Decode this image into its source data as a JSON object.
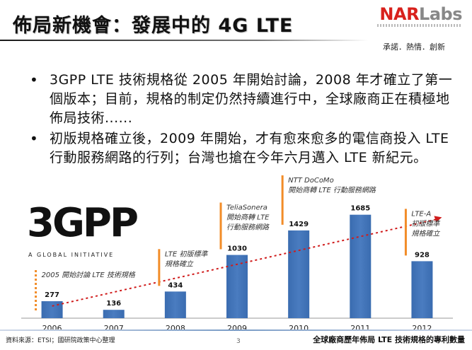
{
  "header": {
    "title": "佈局新機會：發展中的 4G LTE",
    "logo": {
      "nar": "NAR",
      "labs": "Labs"
    },
    "slogan": "承諾．熱情．創新"
  },
  "bullets": [
    "3GPP LTE 技術規格從 2005 年開始討論，2008 年才確立了第一個版本；目前，規格的制定仍然持續進行中，全球廠商正在積極地佈局技術......",
    "初版規格確立後，2009 年開始，才有愈來愈多的電信商投入 LTE 行動服務網路的行列；台灣也搶在今年六月邁入 LTE 新紀元。"
  ],
  "logo3gpp": {
    "mark": "3GPP",
    "tagline": "A GLOBAL INITIATIVE"
  },
  "chart_data": {
    "type": "bar",
    "title": "全球廠商歷年佈局 LTE 技術規格的專利數量",
    "categories": [
      "2006",
      "2007",
      "2008",
      "2009",
      "2010",
      "2011",
      "2012"
    ],
    "values": [
      277,
      136,
      434,
      1030,
      1429,
      1685,
      928
    ],
    "ylim": [
      0,
      1900
    ],
    "trendline": true,
    "colors": {
      "bar": "#4a7cc0",
      "trend": "#d01c1c",
      "marker": "#f28c28",
      "axis": "#999999"
    },
    "annotations": [
      {
        "category": "2006",
        "lines": [
          "2005 開始討論 LTE 技術規格"
        ]
      },
      {
        "category": "2008",
        "lines": [
          "LTE 初版標準",
          "規格確立"
        ]
      },
      {
        "category": "2009",
        "lines": [
          "TeliaSonera",
          "開始商轉 LTE",
          "行動服務網路"
        ]
      },
      {
        "category": "2010",
        "lines": [
          "NTT DoCoMo",
          "開始商轉 LTE 行動服務網路"
        ]
      },
      {
        "category": "2012",
        "lines": [
          "LTE-A",
          "初版標準",
          "規格確立"
        ]
      }
    ]
  },
  "footer": {
    "source": "資料來源：ETSI；國研院政策中心整理",
    "page": "3",
    "caption": "全球廠商歷年佈局 LTE 技術規格的專利數量"
  }
}
